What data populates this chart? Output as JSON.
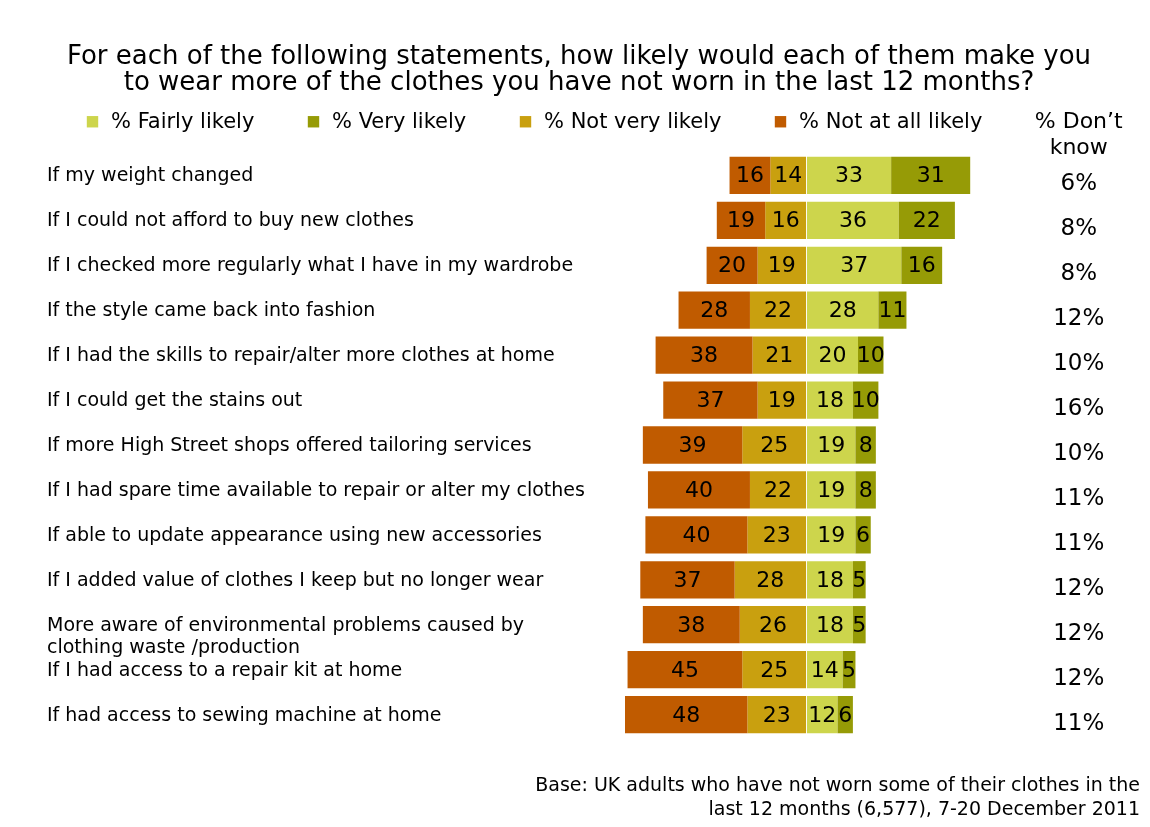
{
  "chart_data": [
    {
      "type": "bar",
      "orientation": "horizontal",
      "stacked": true,
      "title": "For each of the following statements, how likely would each of them make you to wear more of the clothes you have not worn in the last 12 months?",
      "categories": [
        "If my weight changed",
        "If I could not afford to buy new clothes",
        "If I checked more regularly what I have in my wardrobe",
        "If the style came back into fashion",
        "If I had the skills to repair/alter more clothes at home",
        "If I could get the stains out",
        "If more High Street shops offered tailoring services",
        "If I had spare time available to repair or alter my clothes",
        "If able to update appearance using new accessories",
        "If I added value of clothes I keep but no longer wear",
        "More aware of environmental problems caused by clothing waste /production",
        "If I had access to a repair kit at home",
        "If had access to sewing machine at home"
      ],
      "xlim": [
        71,
        0
      ],
      "series": [
        {
          "name": "% Not very likely",
          "color": "#c9a00f",
          "values": [
            14,
            16,
            19,
            22,
            21,
            19,
            25,
            22,
            23,
            28,
            26,
            25,
            23
          ]
        },
        {
          "name": "% Not at all likely",
          "color": "#c05b00",
          "values": [
            16,
            19,
            20,
            28,
            38,
            37,
            39,
            40,
            40,
            37,
            38,
            45,
            48
          ]
        }
      ],
      "data_labels": true,
      "legend": "top",
      "tick_labels": "y",
      "annotations": [
        "Base: UK adults who have not worn some of their clothes in the last 12 months (6,577), 7-20 December 2011"
      ]
    },
    {
      "type": "bar",
      "orientation": "horizontal",
      "stacked": true,
      "categories": [
        null,
        null,
        null,
        null,
        null,
        null,
        null,
        null,
        null,
        null,
        null,
        null,
        null
      ],
      "xlim": [
        0,
        64
      ],
      "series": [
        {
          "name": "% Fairly likely",
          "color": "#cdd54c",
          "values": [
            33,
            36,
            37,
            28,
            20,
            18,
            19,
            19,
            19,
            18,
            18,
            14,
            12
          ]
        },
        {
          "name": "% Very likely",
          "color": "#969b06",
          "values": [
            31,
            22,
            16,
            11,
            10,
            10,
            8,
            8,
            6,
            5,
            5,
            5,
            6
          ]
        }
      ],
      "data_labels": true,
      "legend": "top"
    },
    {
      "type": "other",
      "title": "% Don’t know",
      "annotations": [
        "6%",
        "8%",
        "8%",
        "12%",
        "10%",
        "16%",
        "10%",
        "11%",
        "11%",
        "12%",
        "12%",
        "12%",
        "11%"
      ]
    }
  ]
}
